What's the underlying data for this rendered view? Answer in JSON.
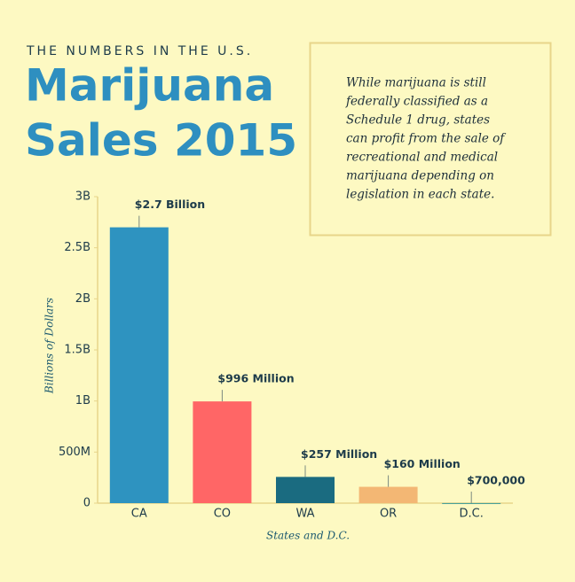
{
  "chart_data": {
    "type": "bar",
    "kicker": "THE NUMBERS IN THE U.S.",
    "title": [
      "Marijuana",
      "Sales 2015"
    ],
    "note": [
      "While marijuana is still",
      "federally classified as a",
      "Schedule 1 drug, states",
      "can profit from the sale of",
      "recreational and medical",
      "marijuana depending on",
      "legislation in each state."
    ],
    "y_label": "Billions of Dollars",
    "x_label": "States and D.C.",
    "categories": [
      "CA",
      "CO",
      "WA",
      "OR",
      "D.C."
    ],
    "values": [
      2700000000,
      996000000,
      257000000,
      160000000,
      700000
    ],
    "value_labels": [
      "$2.7 Billion",
      "$996 Million",
      "$257 Million",
      "$160 Million",
      "$700,000"
    ],
    "colors": [
      "#2e93c0",
      "#ff6666",
      "#1a6b80",
      "#f3b774",
      "#3a9a9a"
    ],
    "ylim": [
      0,
      3000000000
    ],
    "yticks": [
      0,
      {
        "value": 500000000,
        "label": "500M"
      },
      {
        "value": 1000000000,
        "label": "1B"
      },
      {
        "value": 1500000000,
        "label": "1.5B"
      },
      {
        "value": 2000000000,
        "label": "2B"
      },
      {
        "value": 2500000000,
        "label": "2.5B"
      },
      {
        "value": 3000000000,
        "label": "3B"
      }
    ],
    "grid": false
  }
}
